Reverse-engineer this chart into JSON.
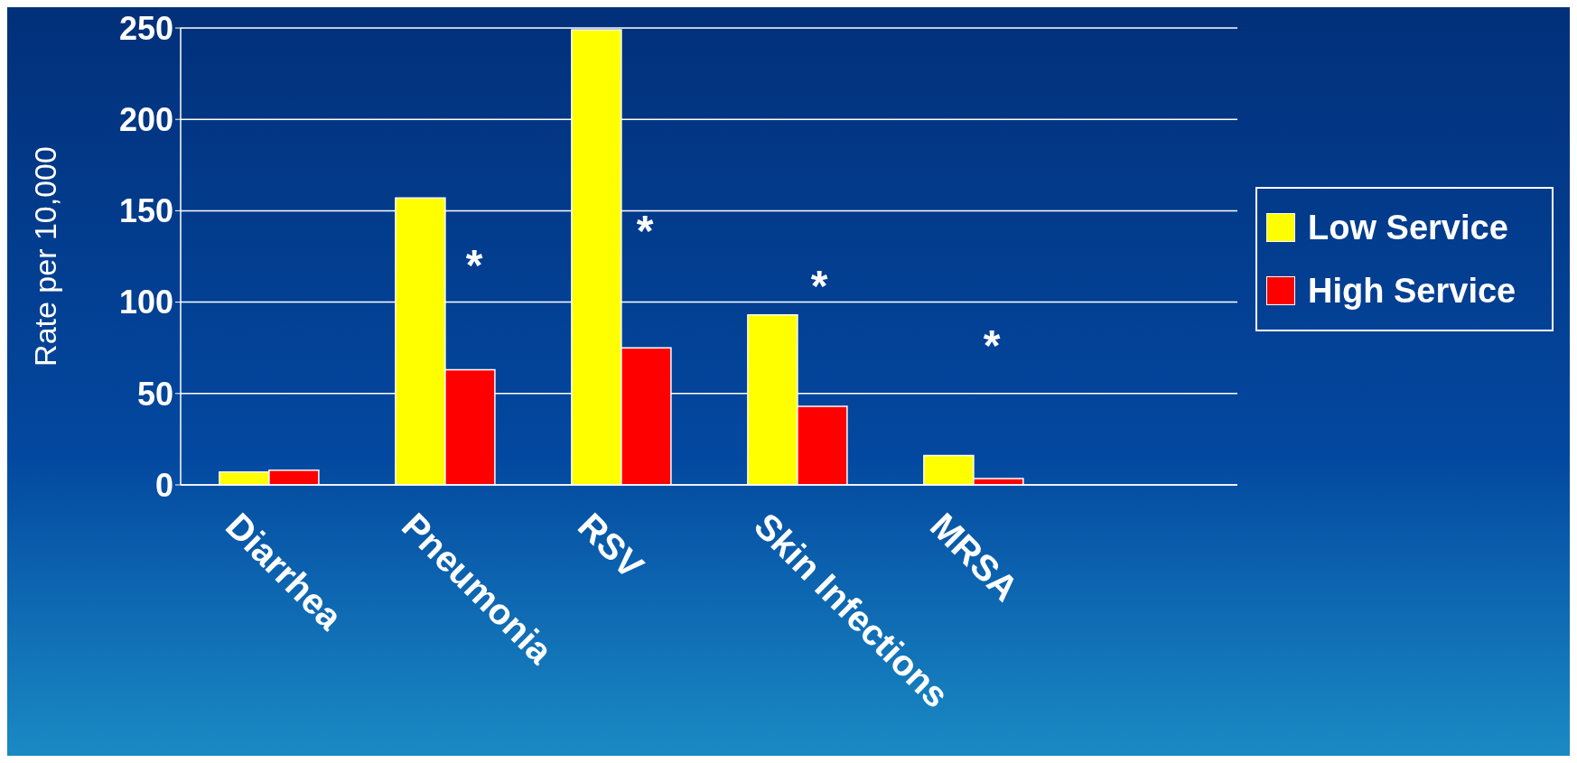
{
  "chart_data": {
    "type": "bar",
    "ylabel": "Rate per 10,000",
    "categories": [
      "Diarrhea",
      "Pneumonia",
      "RSV",
      "Skin Infections",
      "MRSA",
      null
    ],
    "series": [
      {
        "name": "Low Service",
        "color": "#ffff00",
        "values": [
          7,
          157,
          249,
          93,
          16,
          null
        ]
      },
      {
        "name": "High Service",
        "color": "#ff0000",
        "values": [
          8,
          63,
          75,
          43,
          3.5,
          null
        ]
      }
    ],
    "ylim": [
      0,
      250
    ],
    "yticks": [
      0,
      50,
      100,
      150,
      200,
      250
    ],
    "grid": "y",
    "legend": "right",
    "annotations": [
      "*",
      "*",
      "*",
      "*"
    ]
  }
}
